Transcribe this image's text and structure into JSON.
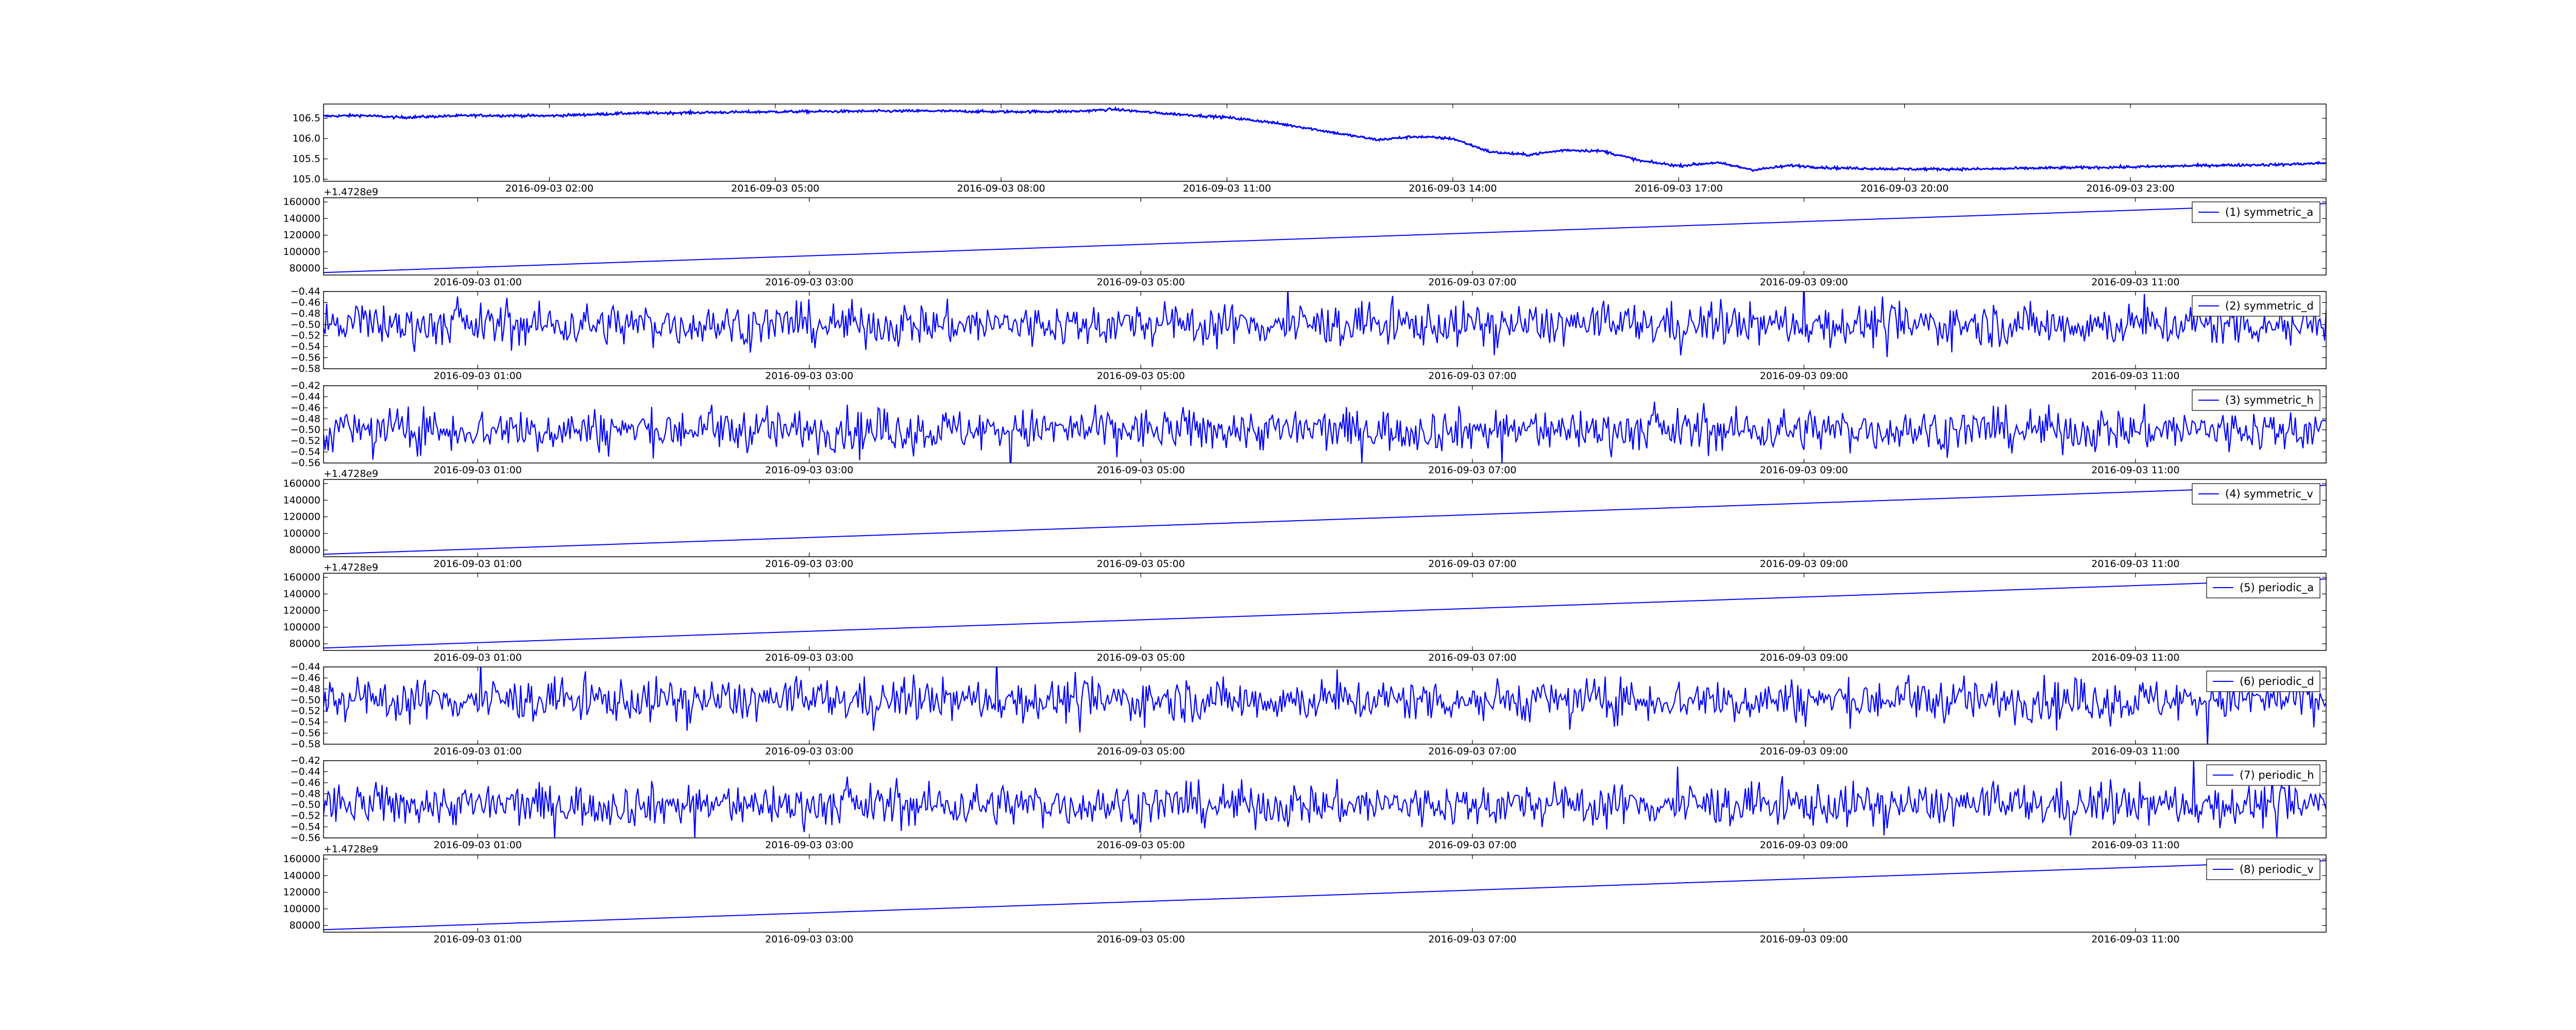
{
  "chart_data": [
    {
      "type": "line",
      "color": "#0000ff",
      "legend": null,
      "offset_text": "",
      "ylim": [
        104.95,
        106.85
      ],
      "yticks": [
        "105.0",
        "105.5",
        "106.0",
        "106.5"
      ],
      "ytick_values": [
        105.0,
        105.5,
        106.0,
        106.5
      ],
      "xlim": [
        "2016-09-02 23:00",
        "2016-09-04 01:36"
      ],
      "xticks": [
        "2016-09-03 02:00",
        "2016-09-03 05:00",
        "2016-09-03 08:00",
        "2016-09-03 11:00",
        "2016-09-03 14:00",
        "2016-09-03 17:00",
        "2016-09-03 20:00",
        "2016-09-03 23:00"
      ],
      "xtick_hours": [
        3,
        6,
        9,
        12,
        15,
        18,
        21,
        24
      ],
      "xlim_hours": [
        0,
        26.6
      ],
      "noise": 0.035,
      "x_hours": [
        0,
        0.5,
        1,
        2,
        3,
        4,
        5,
        6,
        7,
        8,
        9,
        10,
        10.5,
        11,
        11.5,
        12,
        12.5,
        13,
        13.5,
        14,
        14.5,
        15,
        15.5,
        16,
        16.5,
        17,
        17.5,
        18,
        18.5,
        19,
        19.5,
        20,
        21,
        22,
        23,
        24,
        25,
        26,
        26.6
      ],
      "values": [
        106.55,
        106.57,
        106.52,
        106.57,
        106.56,
        106.62,
        106.64,
        106.66,
        106.67,
        106.68,
        106.66,
        106.67,
        106.72,
        106.64,
        106.58,
        106.52,
        106.42,
        106.28,
        106.12,
        105.97,
        106.05,
        106.0,
        105.67,
        105.6,
        105.72,
        105.69,
        105.45,
        105.33,
        105.41,
        105.23,
        105.34,
        105.28,
        105.25,
        105.25,
        105.28,
        105.3,
        105.34,
        105.36,
        105.4
      ]
    },
    {
      "type": "line",
      "color": "#0000ff",
      "legend": "(1) symmetric_a",
      "offset_text": "+1.4728e9",
      "ylim": [
        72000,
        165000
      ],
      "yticks": [
        "80000",
        "100000",
        "120000",
        "140000",
        "160000"
      ],
      "ytick_values": [
        80000,
        100000,
        120000,
        140000,
        160000
      ],
      "xlim": [
        "2016-09-03 00:04",
        "2016-09-03 12:09"
      ],
      "xticks": [
        "2016-09-03 01:00",
        "2016-09-03 03:00",
        "2016-09-03 05:00",
        "2016-09-03 07:00",
        "2016-09-03 09:00",
        "2016-09-03 11:00"
      ],
      "xtick_hours": [
        1,
        3,
        5,
        7,
        9,
        11
      ],
      "xlim_hours": [
        0.07,
        12.15
      ],
      "x_hours": [
        0.07,
        12.15
      ],
      "values": [
        75000,
        158000
      ]
    },
    {
      "type": "line",
      "color": "#0000ff",
      "legend": "(2) symmetric_d",
      "offset_text": "",
      "ylim": [
        -0.58,
        -0.44
      ],
      "yticks": [
        "−0.58",
        "−0.56",
        "−0.54",
        "−0.52",
        "−0.50",
        "−0.48",
        "−0.46",
        "−0.44"
      ],
      "ytick_values": [
        -0.58,
        -0.56,
        -0.54,
        -0.52,
        -0.5,
        -0.48,
        -0.46,
        -0.44
      ],
      "xlim": [
        "2016-09-03 00:04",
        "2016-09-03 12:09"
      ],
      "xticks": [
        "2016-09-03 01:00",
        "2016-09-03 03:00",
        "2016-09-03 05:00",
        "2016-09-03 07:00",
        "2016-09-03 09:00",
        "2016-09-03 11:00"
      ],
      "xtick_hours": [
        1,
        3,
        5,
        7,
        9,
        11
      ],
      "xlim_hours": [
        0.07,
        12.15
      ],
      "noise_center": -0.5,
      "noise_amplitude": 0.045
    },
    {
      "type": "line",
      "color": "#0000ff",
      "legend": "(3) symmetric_h",
      "offset_text": "",
      "ylim": [
        -0.56,
        -0.42
      ],
      "yticks": [
        "−0.56",
        "−0.54",
        "−0.52",
        "−0.50",
        "−0.48",
        "−0.46",
        "−0.44",
        "−0.42"
      ],
      "ytick_values": [
        -0.56,
        -0.54,
        -0.52,
        -0.5,
        -0.48,
        -0.46,
        -0.44,
        -0.42
      ],
      "xlim": [
        "2016-09-03 00:04",
        "2016-09-03 12:09"
      ],
      "xticks": [
        "2016-09-03 01:00",
        "2016-09-03 03:00",
        "2016-09-03 05:00",
        "2016-09-03 07:00",
        "2016-09-03 09:00",
        "2016-09-03 11:00"
      ],
      "xtick_hours": [
        1,
        3,
        5,
        7,
        9,
        11
      ],
      "xlim_hours": [
        0.07,
        12.15
      ],
      "noise_center": -0.5,
      "noise_amplitude": 0.045
    },
    {
      "type": "line",
      "color": "#0000ff",
      "legend": "(4) symmetric_v",
      "offset_text": "+1.4728e9",
      "ylim": [
        72000,
        165000
      ],
      "yticks": [
        "80000",
        "100000",
        "120000",
        "140000",
        "160000"
      ],
      "ytick_values": [
        80000,
        100000,
        120000,
        140000,
        160000
      ],
      "xlim": [
        "2016-09-03 00:04",
        "2016-09-03 12:09"
      ],
      "xticks": [
        "2016-09-03 01:00",
        "2016-09-03 03:00",
        "2016-09-03 05:00",
        "2016-09-03 07:00",
        "2016-09-03 09:00",
        "2016-09-03 11:00"
      ],
      "xtick_hours": [
        1,
        3,
        5,
        7,
        9,
        11
      ],
      "xlim_hours": [
        0.07,
        12.15
      ],
      "x_hours": [
        0.07,
        12.15
      ],
      "values": [
        75000,
        158000
      ]
    },
    {
      "type": "line",
      "color": "#0000ff",
      "legend": "(5) periodic_a",
      "offset_text": "+1.4728e9",
      "ylim": [
        72000,
        165000
      ],
      "yticks": [
        "80000",
        "100000",
        "120000",
        "140000",
        "160000"
      ],
      "ytick_values": [
        80000,
        100000,
        120000,
        140000,
        160000
      ],
      "xlim": [
        "2016-09-03 00:04",
        "2016-09-03 12:09"
      ],
      "xticks": [
        "2016-09-03 01:00",
        "2016-09-03 03:00",
        "2016-09-03 05:00",
        "2016-09-03 07:00",
        "2016-09-03 09:00",
        "2016-09-03 11:00"
      ],
      "xtick_hours": [
        1,
        3,
        5,
        7,
        9,
        11
      ],
      "xlim_hours": [
        0.07,
        12.15
      ],
      "x_hours": [
        0.07,
        12.15
      ],
      "values": [
        75000,
        158000
      ]
    },
    {
      "type": "line",
      "color": "#0000ff",
      "legend": "(6) periodic_d",
      "offset_text": "",
      "ylim": [
        -0.58,
        -0.44
      ],
      "yticks": [
        "−0.58",
        "−0.56",
        "−0.54",
        "−0.52",
        "−0.50",
        "−0.48",
        "−0.46",
        "−0.44"
      ],
      "ytick_values": [
        -0.58,
        -0.56,
        -0.54,
        -0.52,
        -0.5,
        -0.48,
        -0.46,
        -0.44
      ],
      "xlim": [
        "2016-09-03 00:04",
        "2016-09-03 12:09"
      ],
      "xticks": [
        "2016-09-03 01:00",
        "2016-09-03 03:00",
        "2016-09-03 05:00",
        "2016-09-03 07:00",
        "2016-09-03 09:00",
        "2016-09-03 11:00"
      ],
      "xtick_hours": [
        1,
        3,
        5,
        7,
        9,
        11
      ],
      "xlim_hours": [
        0.07,
        12.15
      ],
      "noise_center": -0.5,
      "noise_amplitude": 0.045
    },
    {
      "type": "line",
      "color": "#0000ff",
      "legend": "(7) periodic_h",
      "offset_text": "",
      "ylim": [
        -0.56,
        -0.42
      ],
      "yticks": [
        "−0.56",
        "−0.54",
        "−0.52",
        "−0.50",
        "−0.48",
        "−0.46",
        "−0.44",
        "−0.42"
      ],
      "ytick_values": [
        -0.56,
        -0.54,
        -0.52,
        -0.5,
        -0.48,
        -0.46,
        -0.44,
        -0.42
      ],
      "xlim": [
        "2016-09-03 00:04",
        "2016-09-03 12:09"
      ],
      "xticks": [
        "2016-09-03 01:00",
        "2016-09-03 03:00",
        "2016-09-03 05:00",
        "2016-09-03 07:00",
        "2016-09-03 09:00",
        "2016-09-03 11:00"
      ],
      "xtick_hours": [
        1,
        3,
        5,
        7,
        9,
        11
      ],
      "xlim_hours": [
        0.07,
        12.15
      ],
      "noise_center": -0.5,
      "noise_amplitude": 0.045
    },
    {
      "type": "line",
      "color": "#0000ff",
      "legend": "(8) periodic_v",
      "offset_text": "+1.4728e9",
      "ylim": [
        72000,
        165000
      ],
      "yticks": [
        "80000",
        "100000",
        "120000",
        "140000",
        "160000"
      ],
      "ytick_values": [
        80000,
        100000,
        120000,
        140000,
        160000
      ],
      "xlim": [
        "2016-09-03 00:04",
        "2016-09-03 12:09"
      ],
      "xticks": [
        "2016-09-03 01:00",
        "2016-09-03 03:00",
        "2016-09-03 05:00",
        "2016-09-03 07:00",
        "2016-09-03 09:00",
        "2016-09-03 11:00"
      ],
      "xtick_hours": [
        1,
        3,
        5,
        7,
        9,
        11
      ],
      "xlim_hours": [
        0.07,
        12.15
      ],
      "x_hours": [
        0.07,
        12.15
      ],
      "values": [
        75000,
        158000
      ]
    }
  ]
}
